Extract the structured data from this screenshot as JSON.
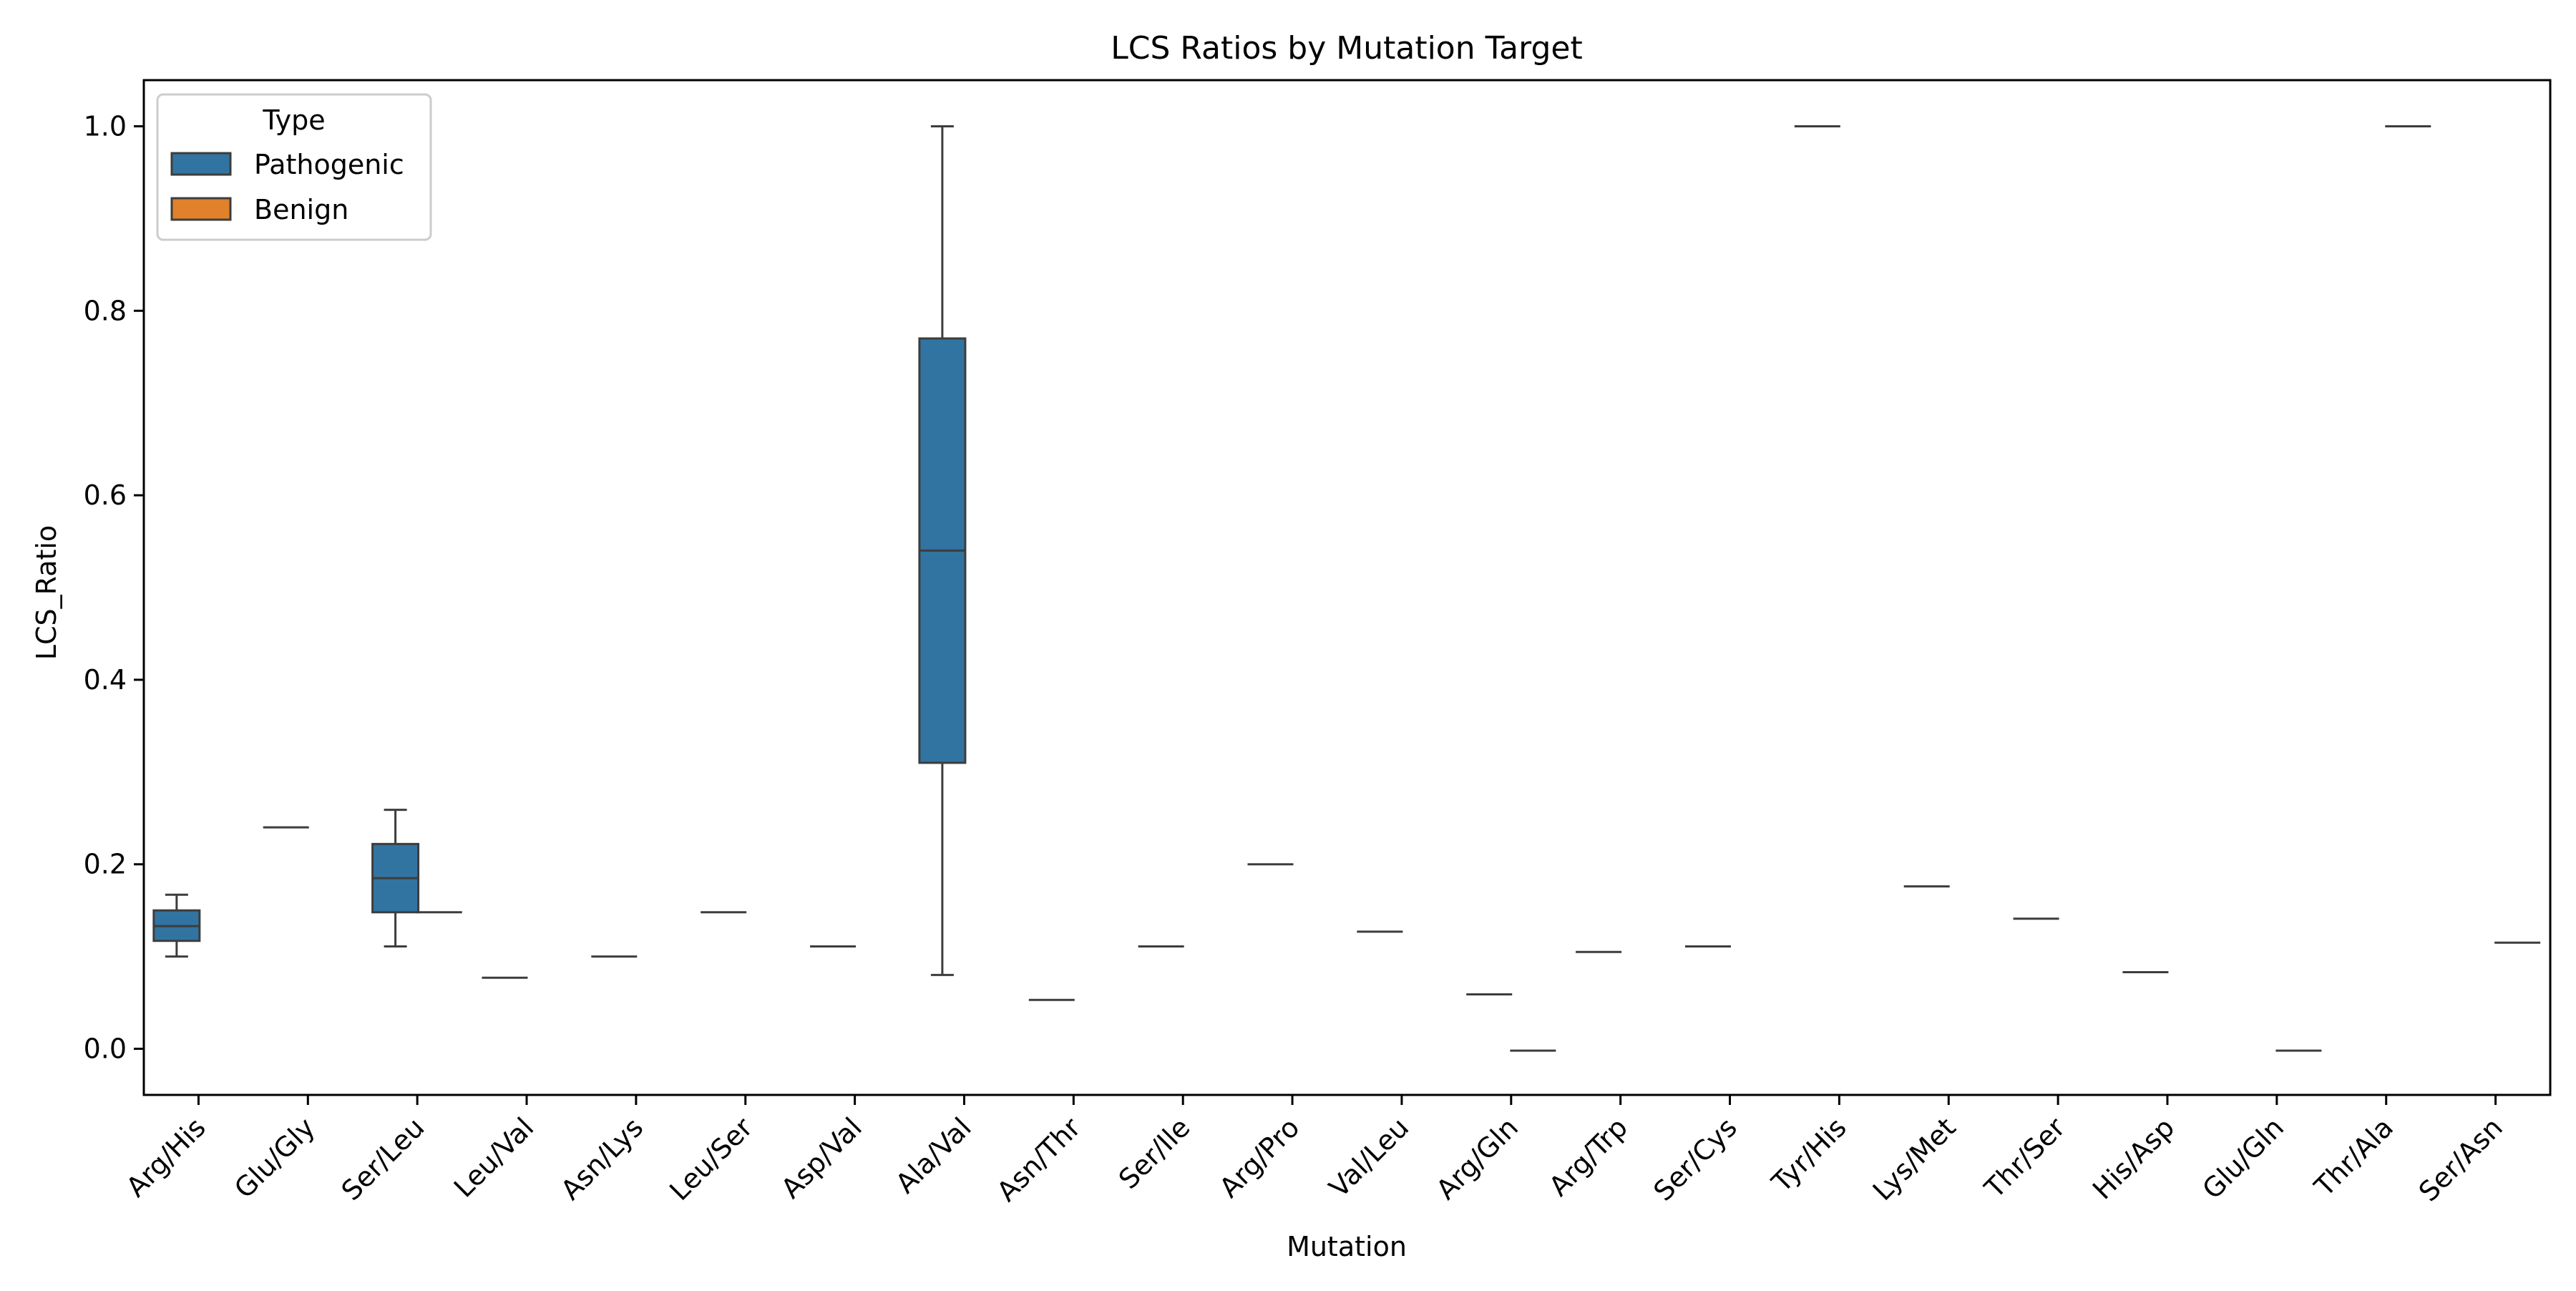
{
  "chart_data": {
    "type": "box",
    "title": "LCS Ratios by Mutation Target",
    "xlabel": "Mutation",
    "ylabel": "LCS_Ratio",
    "ylim": [
      -0.05,
      1.05
    ],
    "yticks": [
      0.0,
      0.2,
      0.4,
      0.6,
      0.8,
      1.0
    ],
    "ytick_labels": [
      "0.0",
      "0.2",
      "0.4",
      "0.6",
      "0.8",
      "1.0"
    ],
    "grid": false,
    "legend": {
      "title": "Type",
      "position": "top-left",
      "entries": [
        {
          "label": "Pathogenic",
          "color": "#3274a1"
        },
        {
          "label": "Benign",
          "color": "#e1812c"
        }
      ]
    },
    "categories": [
      "Arg/His",
      "Glu/Gly",
      "Ser/Leu",
      "Leu/Val",
      "Asn/Lys",
      "Leu/Ser",
      "Asp/Val",
      "Ala/Val",
      "Asn/Thr",
      "Ser/Ile",
      "Arg/Pro",
      "Val/Leu",
      "Arg/Gln",
      "Arg/Trp",
      "Ser/Cys",
      "Tyr/His",
      "Lys/Met",
      "Thr/Ser",
      "His/Asp",
      "Glu/Gln",
      "Thr/Ala",
      "Ser/Asn"
    ],
    "boxes": [
      {
        "category": "Arg/His",
        "series": "Pathogenic",
        "whisker_low": 0.1,
        "q1": 0.117,
        "median": 0.133,
        "q3": 0.15,
        "whisker_high": 0.167
      },
      {
        "category": "Glu/Gly",
        "series": "Pathogenic",
        "whisker_low": 0.24,
        "q1": 0.24,
        "median": 0.24,
        "q3": 0.24,
        "whisker_high": 0.24
      },
      {
        "category": "Ser/Leu",
        "series": "Pathogenic",
        "whisker_low": 0.111,
        "q1": 0.148,
        "median": 0.185,
        "q3": 0.222,
        "whisker_high": 0.259
      },
      {
        "category": "Ser/Leu",
        "series": "Benign",
        "whisker_low": 0.148,
        "q1": 0.148,
        "median": 0.148,
        "q3": 0.148,
        "whisker_high": 0.148
      },
      {
        "category": "Leu/Val",
        "series": "Pathogenic",
        "whisker_low": 0.077,
        "q1": 0.077,
        "median": 0.077,
        "q3": 0.077,
        "whisker_high": 0.077
      },
      {
        "category": "Asn/Lys",
        "series": "Pathogenic",
        "whisker_low": 0.1,
        "q1": 0.1,
        "median": 0.1,
        "q3": 0.1,
        "whisker_high": 0.1
      },
      {
        "category": "Leu/Ser",
        "series": "Pathogenic",
        "whisker_low": 0.148,
        "q1": 0.148,
        "median": 0.148,
        "q3": 0.148,
        "whisker_high": 0.148
      },
      {
        "category": "Asp/Val",
        "series": "Pathogenic",
        "whisker_low": 0.111,
        "q1": 0.111,
        "median": 0.111,
        "q3": 0.111,
        "whisker_high": 0.111
      },
      {
        "category": "Ala/Val",
        "series": "Pathogenic",
        "whisker_low": 0.08,
        "q1": 0.31,
        "median": 0.54,
        "q3": 0.77,
        "whisker_high": 1.0
      },
      {
        "category": "Asn/Thr",
        "series": "Pathogenic",
        "whisker_low": 0.053,
        "q1": 0.053,
        "median": 0.053,
        "q3": 0.053,
        "whisker_high": 0.053
      },
      {
        "category": "Ser/Ile",
        "series": "Pathogenic",
        "whisker_low": 0.111,
        "q1": 0.111,
        "median": 0.111,
        "q3": 0.111,
        "whisker_high": 0.111
      },
      {
        "category": "Arg/Pro",
        "series": "Pathogenic",
        "whisker_low": 0.2,
        "q1": 0.2,
        "median": 0.2,
        "q3": 0.2,
        "whisker_high": 0.2
      },
      {
        "category": "Val/Leu",
        "series": "Pathogenic",
        "whisker_low": 0.127,
        "q1": 0.127,
        "median": 0.127,
        "q3": 0.127,
        "whisker_high": 0.127
      },
      {
        "category": "Arg/Gln",
        "series": "Pathogenic",
        "whisker_low": 0.059,
        "q1": 0.059,
        "median": 0.059,
        "q3": 0.059,
        "whisker_high": 0.059
      },
      {
        "category": "Arg/Gln",
        "series": "Benign",
        "whisker_low": -0.002,
        "q1": -0.002,
        "median": -0.002,
        "q3": -0.002,
        "whisker_high": -0.002
      },
      {
        "category": "Arg/Trp",
        "series": "Pathogenic",
        "whisker_low": 0.105,
        "q1": 0.105,
        "median": 0.105,
        "q3": 0.105,
        "whisker_high": 0.105
      },
      {
        "category": "Ser/Cys",
        "series": "Pathogenic",
        "whisker_low": 0.111,
        "q1": 0.111,
        "median": 0.111,
        "q3": 0.111,
        "whisker_high": 0.111
      },
      {
        "category": "Tyr/His",
        "series": "Pathogenic",
        "whisker_low": 1.0,
        "q1": 1.0,
        "median": 1.0,
        "q3": 1.0,
        "whisker_high": 1.0
      },
      {
        "category": "Lys/Met",
        "series": "Pathogenic",
        "whisker_low": 0.176,
        "q1": 0.176,
        "median": 0.176,
        "q3": 0.176,
        "whisker_high": 0.176
      },
      {
        "category": "Thr/Ser",
        "series": "Pathogenic",
        "whisker_low": 0.141,
        "q1": 0.141,
        "median": 0.141,
        "q3": 0.141,
        "whisker_high": 0.141
      },
      {
        "category": "His/Asp",
        "series": "Pathogenic",
        "whisker_low": 0.083,
        "q1": 0.083,
        "median": 0.083,
        "q3": 0.083,
        "whisker_high": 0.083
      },
      {
        "category": "Glu/Gln",
        "series": "Benign",
        "whisker_low": -0.002,
        "q1": -0.002,
        "median": -0.002,
        "q3": -0.002,
        "whisker_high": -0.002
      },
      {
        "category": "Thr/Ala",
        "series": "Benign",
        "whisker_low": 1.0,
        "q1": 1.0,
        "median": 1.0,
        "q3": 1.0,
        "whisker_high": 1.0
      },
      {
        "category": "Ser/Asn",
        "series": "Benign",
        "whisker_low": 0.115,
        "q1": 0.115,
        "median": 0.115,
        "q3": 0.115,
        "whisker_high": 0.115
      }
    ]
  }
}
